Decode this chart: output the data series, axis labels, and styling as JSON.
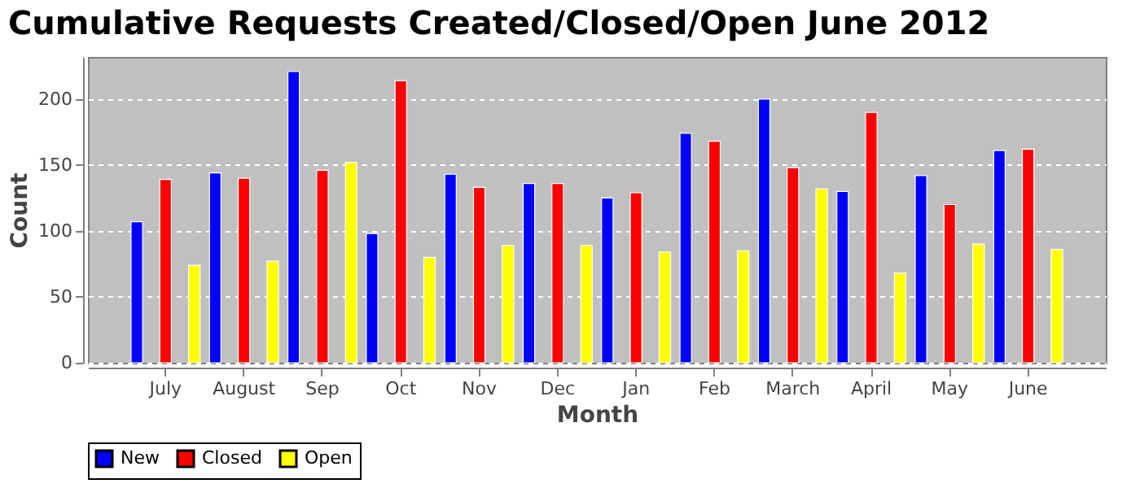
{
  "chart_data": {
    "type": "bar",
    "title": "Cumulative Requests Created/Closed/Open June 2012",
    "xlabel": "Month",
    "ylabel": "Count",
    "categories": [
      "July",
      "August",
      "Sep",
      "Oct",
      "Nov",
      "Dec",
      "Jan",
      "Feb",
      "March",
      "April",
      "May",
      "June"
    ],
    "series": [
      {
        "name": "New",
        "color": "#0000ff",
        "values": [
          107,
          144,
          221,
          98,
          143,
          136,
          125,
          174,
          200,
          130,
          142,
          161
        ]
      },
      {
        "name": "Closed",
        "color": "#ff0000",
        "values": [
          139,
          140,
          146,
          214,
          133,
          136,
          129,
          168,
          148,
          190,
          120,
          162
        ]
      },
      {
        "name": "Open",
        "color": "#ffff00",
        "values": [
          74,
          77,
          152,
          80,
          89,
          89,
          84,
          85,
          132,
          68,
          90,
          86
        ]
      }
    ],
    "ylim": [
      0,
      232
    ],
    "yticks": [
      0,
      50,
      100,
      150,
      200
    ],
    "grid": "y",
    "legend": "bottom"
  }
}
